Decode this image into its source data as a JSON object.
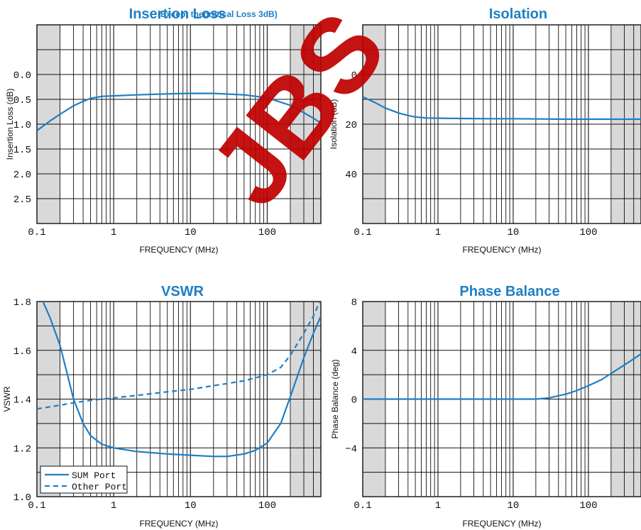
{
  "watermark": "JBS",
  "chart_data": [
    {
      "id": "insertion",
      "type": "line",
      "title": "Insertion Loss",
      "subtitle": "(Except theoretical Loss 3dB)",
      "xlabel": "FREQUENCY (MHz)",
      "ylabel": "Insertion Loss (dB)",
      "xscale": "log",
      "xlim": [
        0.1,
        500
      ],
      "ylim": [
        -1.0,
        3.0
      ],
      "y_inverted": true,
      "xticks": [
        0.1,
        1,
        10,
        100
      ],
      "xtick_labels": [
        "0.1",
        "1",
        "10",
        "100"
      ],
      "yticks": [
        0.0,
        0.5,
        1.0,
        1.5,
        2.0,
        2.5
      ],
      "ytick_labels": [
        "0.0",
        "0.5",
        "1.0",
        "1.5",
        "2.0",
        "2.5"
      ],
      "shaded_x": [
        [
          0.1,
          0.2
        ],
        [
          200,
          500
        ]
      ],
      "series": [
        {
          "color": "#1e7fc3",
          "dash": "solid",
          "x": [
            0.1,
            0.15,
            0.2,
            0.3,
            0.4,
            0.5,
            0.7,
            1,
            2,
            5,
            10,
            20,
            50,
            100,
            200,
            300,
            400,
            500
          ],
          "y": [
            1.13,
            0.93,
            0.8,
            0.63,
            0.54,
            0.48,
            0.44,
            0.43,
            0.41,
            0.39,
            0.38,
            0.38,
            0.41,
            0.47,
            0.62,
            0.77,
            0.88,
            0.98
          ]
        }
      ]
    },
    {
      "id": "isolation",
      "type": "line",
      "title": "Isolation",
      "xlabel": "FREQUENCY (MHz)",
      "ylabel": "Isolation (dB)",
      "xscale": "log",
      "xlim": [
        0.1,
        500
      ],
      "ylim": [
        -20,
        60
      ],
      "y_inverted": true,
      "xticks": [
        0.1,
        1,
        10,
        100
      ],
      "xtick_labels": [
        "0.1",
        "1",
        "10",
        "100"
      ],
      "yticks": [
        0,
        20,
        40
      ],
      "ytick_labels": [
        "0",
        "20",
        "40"
      ],
      "shaded_x": [
        [
          0.1,
          0.2
        ],
        [
          200,
          500
        ]
      ],
      "series": [
        {
          "color": "#1e7fc3",
          "dash": "solid",
          "x": [
            0.1,
            0.15,
            0.2,
            0.3,
            0.4,
            0.5,
            0.7,
            1,
            2,
            5,
            10,
            50,
            100,
            500
          ],
          "y": [
            9.0,
            11.5,
            13.5,
            15.5,
            16.5,
            17.1,
            17.5,
            17.6,
            17.7,
            17.8,
            17.8,
            18.0,
            18.0,
            18.0
          ]
        }
      ]
    },
    {
      "id": "vswr",
      "type": "line",
      "title": "VSWR",
      "xlabel": "FREQUENCY (MHz)",
      "ylabel": "VSWR",
      "xscale": "log",
      "xlim": [
        0.1,
        500
      ],
      "ylim": [
        1.0,
        1.8
      ],
      "y_inverted": false,
      "xticks": [
        0.1,
        1,
        10,
        100
      ],
      "xtick_labels": [
        "0.1",
        "1",
        "10",
        "100"
      ],
      "yticks": [
        1.0,
        1.2,
        1.4,
        1.6,
        1.8
      ],
      "ytick_labels": [
        "1.0",
        "1.2",
        "1.4",
        "1.6",
        "1.8"
      ],
      "shaded_x": [
        [
          0.1,
          0.2
        ],
        [
          200,
          500
        ]
      ],
      "legend": "bottom-left",
      "series": [
        {
          "name": "SUM Port",
          "color": "#1e7fc3",
          "dash": "solid",
          "x": [
            0.12,
            0.15,
            0.2,
            0.25,
            0.3,
            0.4,
            0.5,
            0.7,
            1,
            2,
            5,
            10,
            20,
            30,
            50,
            70,
            100,
            150,
            200,
            300,
            400,
            500
          ],
          "y": [
            1.8,
            1.73,
            1.62,
            1.5,
            1.4,
            1.3,
            1.25,
            1.215,
            1.2,
            1.185,
            1.175,
            1.17,
            1.165,
            1.165,
            1.175,
            1.19,
            1.22,
            1.3,
            1.41,
            1.57,
            1.67,
            1.74
          ]
        },
        {
          "name": "Other Port",
          "color": "#1e7fc3",
          "dash": "dashed",
          "x": [
            0.1,
            0.2,
            0.3,
            0.5,
            1,
            2,
            5,
            10,
            20,
            50,
            100,
            150,
            200,
            300,
            400,
            500
          ],
          "y": [
            1.36,
            1.375,
            1.385,
            1.395,
            1.405,
            1.415,
            1.43,
            1.44,
            1.455,
            1.475,
            1.5,
            1.53,
            1.58,
            1.67,
            1.74,
            1.81
          ]
        }
      ]
    },
    {
      "id": "phase",
      "type": "line",
      "title": "Phase Balance",
      "xlabel": "FREQUENCY (MHz)",
      "ylabel": "Phase Balance (deg)",
      "xscale": "log",
      "xlim": [
        0.1,
        500
      ],
      "ylim": [
        -8,
        8
      ],
      "y_inverted": false,
      "xticks": [
        0.1,
        1,
        10,
        100
      ],
      "xtick_labels": [
        "0.1",
        "1",
        "10",
        "100"
      ],
      "yticks": [
        8,
        4,
        0,
        -4
      ],
      "ytick_labels": [
        "8",
        "4",
        "0",
        "−4"
      ],
      "shaded_x": [
        [
          0.1,
          0.2
        ],
        [
          200,
          500
        ]
      ],
      "series": [
        {
          "color": "#1e7fc3",
          "dash": "solid",
          "x": [
            0.1,
            1,
            10,
            20,
            30,
            50,
            70,
            100,
            150,
            200,
            300,
            400,
            500
          ],
          "y": [
            0,
            0,
            0,
            0,
            0.1,
            0.4,
            0.7,
            1.1,
            1.6,
            2.1,
            2.8,
            3.3,
            3.7
          ]
        }
      ]
    }
  ]
}
